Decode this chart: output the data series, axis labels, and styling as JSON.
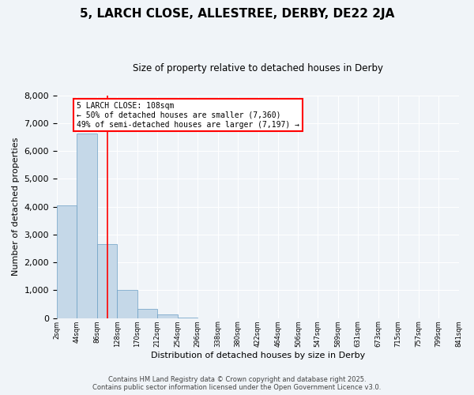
{
  "title": "5, LARCH CLOSE, ALLESTREE, DERBY, DE22 2JA",
  "subtitle": "Size of property relative to detached houses in Derby",
  "xlabel": "Distribution of detached houses by size in Derby",
  "ylabel": "Number of detached properties",
  "bar_color": "#c5d8e8",
  "bar_edge_color": "#6b9ec4",
  "background_color": "#f0f4f8",
  "bin_edges": [
    2,
    44,
    86,
    128,
    170,
    212,
    254,
    296,
    338,
    380,
    422,
    464,
    506,
    547,
    589,
    631,
    673,
    715,
    757,
    799,
    841
  ],
  "bin_labels": [
    "2sqm",
    "44sqm",
    "86sqm",
    "128sqm",
    "170sqm",
    "212sqm",
    "254sqm",
    "296sqm",
    "338sqm",
    "380sqm",
    "422sqm",
    "464sqm",
    "506sqm",
    "547sqm",
    "589sqm",
    "631sqm",
    "673sqm",
    "715sqm",
    "757sqm",
    "799sqm",
    "841sqm"
  ],
  "bar_heights": [
    4050,
    6620,
    2650,
    1000,
    340,
    130,
    20,
    0,
    0,
    0,
    0,
    0,
    0,
    0,
    0,
    0,
    0,
    0,
    0,
    0
  ],
  "ylim": [
    0,
    8000
  ],
  "yticks": [
    0,
    1000,
    2000,
    3000,
    4000,
    5000,
    6000,
    7000,
    8000
  ],
  "property_size": 108,
  "property_label": "5 LARCH CLOSE: 108sqm",
  "annotation_line1": "← 50% of detached houses are smaller (7,360)",
  "annotation_line2": "49% of semi-detached houses are larger (7,197) →",
  "red_line_x": 108,
  "footer_line1": "Contains HM Land Registry data © Crown copyright and database right 2025.",
  "footer_line2": "Contains public sector information licensed under the Open Government Licence v3.0."
}
